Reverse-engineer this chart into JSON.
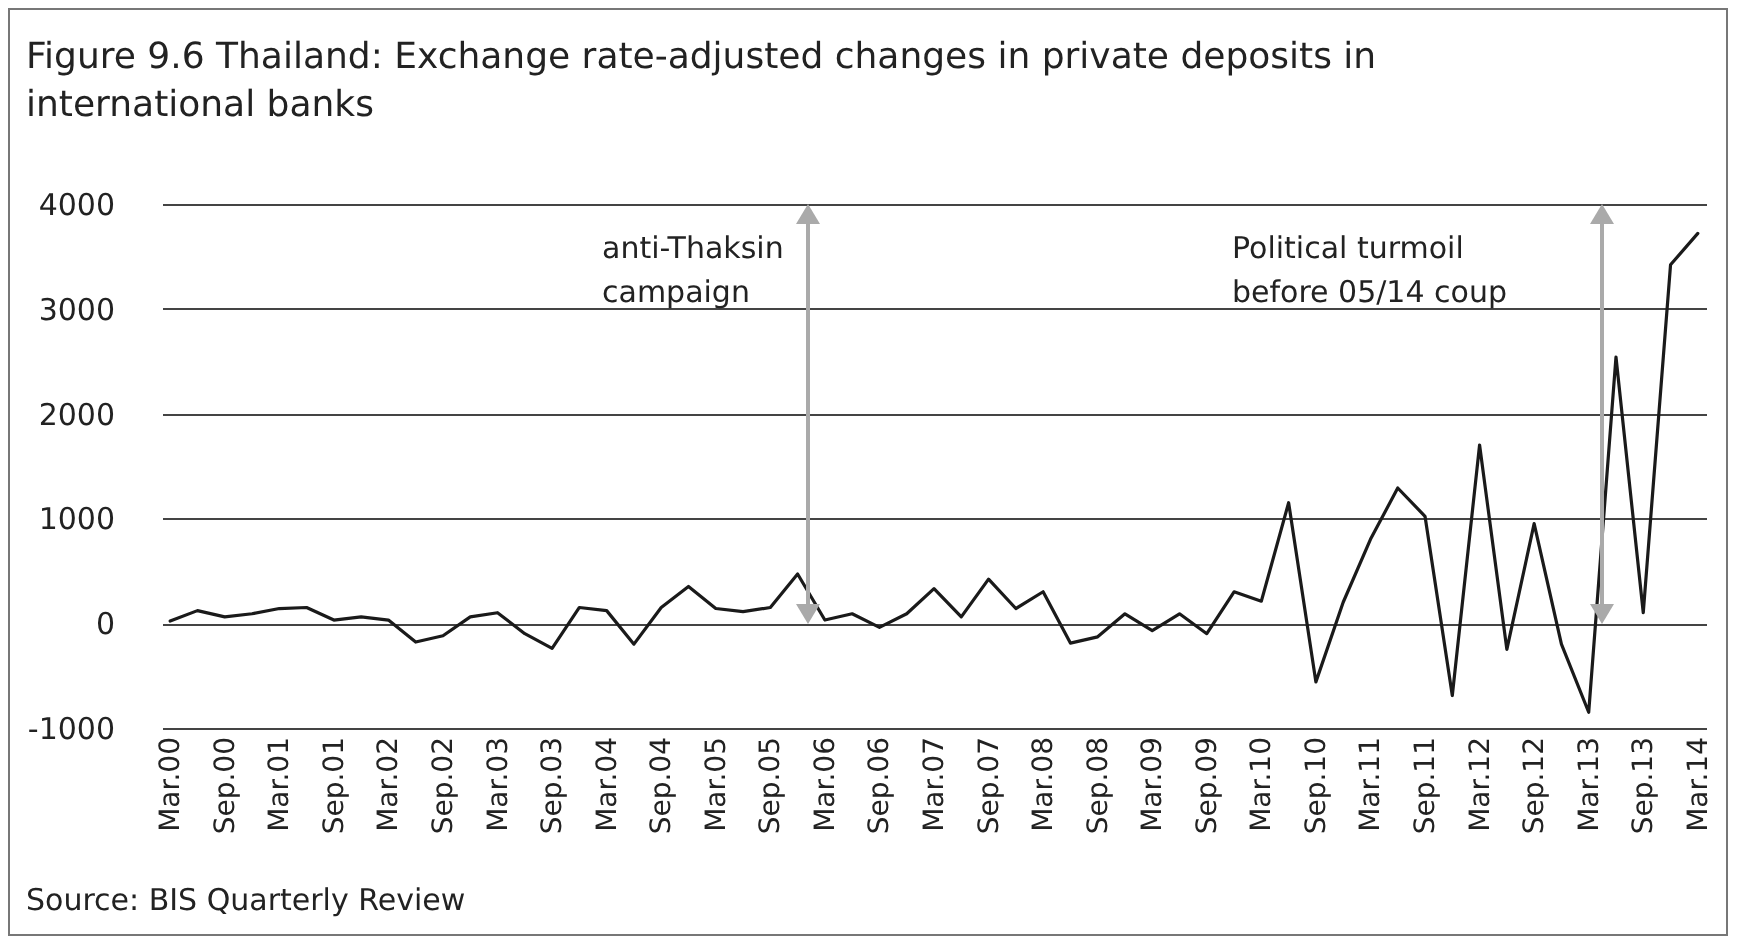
{
  "chart_data": {
    "type": "line",
    "title": "Figure 9.6 Thailand: Exchange rate-adjusted changes in private deposits in international banks",
    "categories": [
      "Mar.00",
      null,
      "Sep.00",
      null,
      "Mar.01",
      null,
      "Sep.01",
      null,
      "Mar.02",
      null,
      "Sep.02",
      null,
      "Mar.03",
      null,
      "Sep.03",
      null,
      "Mar.04",
      null,
      "Sep.04",
      null,
      "Mar.05",
      null,
      "Sep.05",
      null,
      "Mar.06",
      null,
      "Sep.06",
      null,
      "Mar.07",
      null,
      "Sep.07",
      null,
      "Mar.08",
      null,
      "Sep.08",
      null,
      "Mar.09",
      null,
      "Sep.09",
      null,
      "Mar.10",
      null,
      "Sep.10",
      null,
      "Mar.11",
      null,
      "Sep.11",
      null,
      "Mar.12",
      null,
      "Sep.12",
      null,
      "Mar.13",
      null,
      "Sep.13",
      null,
      "Mar.14"
    ],
    "series": [
      {
        "color": "#1a1a1a",
        "values": [
          20,
          120,
          60,
          90,
          140,
          150,
          30,
          60,
          30,
          -180,
          -120,
          60,
          100,
          -100,
          -240,
          150,
          120,
          -200,
          150,
          350,
          140,
          110,
          150,
          470,
          30,
          90,
          -40,
          90,
          330,
          60,
          420,
          140,
          300,
          -190,
          -130,
          90,
          -70,
          90,
          -100,
          300,
          210,
          1150,
          -560,
          200,
          800,
          1290,
          1020,
          -690,
          1700,
          -250,
          950,
          -200,
          -850,
          2540,
          100,
          3420,
          3720
        ]
      }
    ],
    "ylim": [
      -1000,
      4000
    ],
    "yticks": [
      -1000,
      0,
      1000,
      2000,
      3000,
      4000
    ],
    "grid": "y",
    "legend": false,
    "marker": "none",
    "line_style": "solid",
    "annotations": [
      "anti-Thaksin campaign",
      "Political turmoil before 05/14 coup",
      "Source: BIS Quarterly Review"
    ]
  }
}
